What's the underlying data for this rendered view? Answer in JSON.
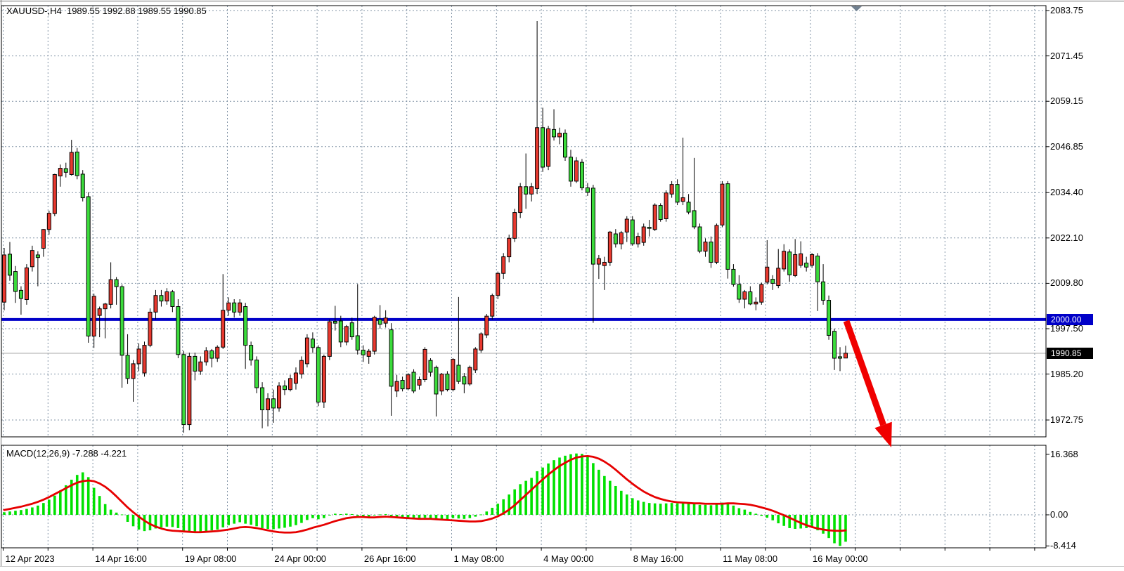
{
  "window": {
    "title": "XAUUSD-,H4  1989.55 1992.88 1989.55 1990.85",
    "symbol_period": "XAUUSD-,H4",
    "ohlc_text": "1989.55 1992.88 1989.55 1990.85"
  },
  "macd_panel": {
    "label": "MACD(12,26,9) -7.288 -4.221"
  },
  "price_tags": {
    "hline": "2000.00",
    "bid": "1990.85"
  },
  "chart_data": {
    "type": "candlestick",
    "symbol": "XAUUSD-",
    "timeframe": "H4",
    "title": "XAUUSD-,H4 1989.55 1992.88 1989.55 1990.85",
    "current_bar": {
      "open": 1989.55,
      "high": 1992.88,
      "low": 1989.55,
      "close": 1990.85
    },
    "price_axis_labels": [
      "2083.75",
      "2071.45",
      "2059.15",
      "2046.85",
      "2034.40",
      "2022.10",
      "2009.80",
      "1997.50",
      "1985.20",
      "1972.75"
    ],
    "time_axis_labels": [
      "12 Apr 2023",
      "14 Apr 16:00",
      "19 Apr 08:00",
      "24 Apr 00:00",
      "26 Apr 16:00",
      "1 May 08:00",
      "4 May 00:00",
      "8 May 16:00",
      "11 May 08:00",
      "16 May 00:00"
    ],
    "horizontal_line": {
      "price": 2000.0,
      "label": "2000.00"
    },
    "bid_line": {
      "price": 1990.85,
      "label": "1990.85"
    },
    "arrow_annotation": {
      "direction": "down",
      "from_price": 2000.0,
      "note": "red sell arrow drawn from 2000.00 line down into MACD panel"
    },
    "colors": {
      "bull": "#e8392f",
      "bear": "#3bdb3b",
      "wick": "#000000",
      "grid": "#8193a5",
      "hline": "#0000c8",
      "bid_line": "#a8a8a8",
      "macd_histogram": "#00e100",
      "macd_signal": "#e60000",
      "arrow": "#f00000",
      "axis_text": "#000000",
      "marker": "#708090"
    },
    "candles": [
      [
        2004.7,
        2019.4,
        2002.5,
        2017.5
      ],
      [
        2017.7,
        2021.0,
        2010.5,
        2012.0
      ],
      [
        2013.0,
        2014.5,
        2004.5,
        2007.6
      ],
      [
        2007.9,
        2009.0,
        2001.3,
        2005.7
      ],
      [
        2005.4,
        2015.0,
        2004.0,
        2014.0
      ],
      [
        2014.3,
        2020.0,
        2013.0,
        2018.7
      ],
      [
        2017.5,
        2018.5,
        2009.0,
        2016.8
      ],
      [
        2019.3,
        2024.5,
        2017.0,
        2024.4
      ],
      [
        2024.4,
        2029.5,
        2023.0,
        2028.8
      ],
      [
        2028.7,
        2039.5,
        2028.0,
        2039.3
      ],
      [
        2038.9,
        2042.0,
        2036.0,
        2041.0
      ],
      [
        2040.9,
        2042.5,
        2038.5,
        2039.9
      ],
      [
        2039.3,
        2048.7,
        2039.0,
        2045.3
      ],
      [
        2045.4,
        2046.5,
        2038.0,
        2039.0
      ],
      [
        2039.4,
        2040.5,
        2032.0,
        2033.0
      ],
      [
        2033.3,
        2034.5,
        1993.7,
        1995.5
      ],
      [
        1995.5,
        2007.0,
        1992.3,
        2006.3
      ],
      [
        2001.1,
        2003.5,
        1995.2,
        2002.9
      ],
      [
        2002.9,
        2004.5,
        1994.9,
        2004.2
      ],
      [
        2004.1,
        2015.5,
        2003.0,
        2010.8
      ],
      [
        2010.8,
        2011.5,
        2004.0,
        2008.9
      ],
      [
        2008.9,
        2009.5,
        1981.5,
        1990.3
      ],
      [
        1990.3,
        1996.0,
        1982.5,
        1984.0
      ],
      [
        1984.0,
        1989.0,
        1977.7,
        1988.0
      ],
      [
        1988.0,
        1993.5,
        1986.0,
        1992.0
      ],
      [
        1985.5,
        1994.0,
        1984.5,
        1993.0
      ],
      [
        1993.0,
        2003.0,
        1992.5,
        2002.0
      ],
      [
        2002.0,
        2008.0,
        2000.0,
        2006.5
      ],
      [
        2006.5,
        2008.0,
        2003.5,
        2005.0
      ],
      [
        2005.0,
        2008.5,
        2004.0,
        2007.5
      ],
      [
        2007.5,
        2008.0,
        2002.0,
        2003.5
      ],
      [
        2003.5,
        2005.5,
        1989.5,
        1990.5
      ],
      [
        1990.5,
        1991.5,
        1969.3,
        1971.5
      ],
      [
        1971.5,
        1991.0,
        1970.0,
        1990.0
      ],
      [
        1990.0,
        1991.0,
        1983.5,
        1986.0
      ],
      [
        1986.0,
        1990.0,
        1985.0,
        1988.5
      ],
      [
        1988.5,
        1992.5,
        1987.5,
        1991.5
      ],
      [
        1991.5,
        1992.0,
        1987.0,
        1989.5
      ],
      [
        1989.5,
        1993.0,
        1988.5,
        1992.5
      ],
      [
        1992.5,
        2012.3,
        1992.0,
        2002.5
      ],
      [
        2002.5,
        2006.0,
        2001.0,
        2004.5
      ],
      [
        2004.5,
        2005.5,
        2000.5,
        2002.0
      ],
      [
        2002.0,
        2005.5,
        2001.0,
        2004.5
      ],
      [
        2003.5,
        2004.5,
        1986.6,
        1993.0
      ],
      [
        1993.0,
        1994.0,
        1987.5,
        1989.0
      ],
      [
        1989.0,
        1990.0,
        1980.0,
        1981.5
      ],
      [
        1981.5,
        1983.0,
        1970.5,
        1975.5
      ],
      [
        1975.5,
        1980.0,
        1971.0,
        1978.5
      ],
      [
        1978.5,
        1981.0,
        1972.0,
        1976.0
      ],
      [
        1976.0,
        1983.0,
        1975.0,
        1982.0
      ],
      [
        1982.0,
        1983.5,
        1979.5,
        1981.0
      ],
      [
        1981.0,
        1985.0,
        1980.5,
        1984.0
      ],
      [
        1982.7,
        1987.0,
        1981.0,
        1985.5
      ],
      [
        1985.2,
        1990.0,
        1984.0,
        1988.9
      ],
      [
        1988.0,
        1996.0,
        1987.0,
        1995.0
      ],
      [
        1994.7,
        1996.5,
        1991.0,
        1992.4
      ],
      [
        1992.4,
        1993.0,
        1976.5,
        1977.6
      ],
      [
        1977.6,
        1990.5,
        1976.0,
        1990.0
      ],
      [
        1990.0,
        2000.0,
        1989.0,
        1999.4
      ],
      [
        1999.5,
        2003.7,
        1997.0,
        1999.0
      ],
      [
        1999.6,
        2001.0,
        1992.5,
        1993.9
      ],
      [
        1993.9,
        1998.5,
        1993.0,
        1998.1
      ],
      [
        1999.1,
        2000.5,
        1994.5,
        1995.3
      ],
      [
        1995.6,
        2009.6,
        1990.5,
        1991.7
      ],
      [
        1991.7,
        1993.0,
        1988.5,
        1990.4
      ],
      [
        1990.0,
        1992.0,
        1988.0,
        1991.4
      ],
      [
        1991.4,
        2001.0,
        1990.5,
        2000.6
      ],
      [
        2000.0,
        2003.9,
        1997.5,
        1998.7
      ],
      [
        1999.0,
        2002.5,
        1997.8,
        2000.4
      ],
      [
        1997.2,
        1999.0,
        1973.9,
        1981.9
      ],
      [
        1980.6,
        1985.0,
        1979.0,
        1983.2
      ],
      [
        1983.5,
        1984.5,
        1980.5,
        1981.2
      ],
      [
        1981.2,
        1985.5,
        1980.8,
        1985.0
      ],
      [
        1985.7,
        1986.5,
        1980.0,
        1980.6
      ],
      [
        1982.2,
        1984.5,
        1981.0,
        1983.7
      ],
      [
        1983.7,
        1992.5,
        1983.0,
        1991.9
      ],
      [
        1988.9,
        1989.5,
        1984.5,
        1985.7
      ],
      [
        1987.0,
        1987.5,
        1973.7,
        1979.8
      ],
      [
        1980.6,
        1985.5,
        1979.5,
        1985.2
      ],
      [
        1985.2,
        1986.0,
        1980.5,
        1981.0
      ],
      [
        1981.0,
        1989.5,
        1980.5,
        1989.2
      ],
      [
        1987.6,
        2006.1,
        1982.5,
        1983.2
      ],
      [
        1984.5,
        1985.5,
        1980.0,
        1982.5
      ],
      [
        1982.5,
        1987.5,
        1982.0,
        1987.0
      ],
      [
        1986.3,
        1992.5,
        1985.5,
        1992.0
      ],
      [
        1991.7,
        1996.5,
        1991.0,
        1996.1
      ],
      [
        1995.8,
        2001.5,
        1995.0,
        2000.9
      ],
      [
        2000.9,
        2007.0,
        2000.0,
        2006.5
      ],
      [
        2006.5,
        2013.0,
        2005.5,
        2012.5
      ],
      [
        2012.5,
        2018.0,
        2011.0,
        2017.0
      ],
      [
        2017.0,
        2023.0,
        2015.5,
        2022.0
      ],
      [
        2022.0,
        2030.0,
        2021.0,
        2029.0
      ],
      [
        2029.0,
        2037.0,
        2027.5,
        2036.0
      ],
      [
        2036.0,
        2045.0,
        2030.0,
        2034.0
      ],
      [
        2034.0,
        2037.0,
        2032.0,
        2036.0
      ],
      [
        2035.5,
        2080.9,
        2034.0,
        2052.0
      ],
      [
        2052.0,
        2057.4,
        2040.0,
        2041.3
      ],
      [
        2041.5,
        2052.5,
        2040.5,
        2051.7
      ],
      [
        2051.5,
        2057.0,
        2048.5,
        2049.5
      ],
      [
        2049.5,
        2052.0,
        2047.5,
        2050.5
      ],
      [
        2050.5,
        2051.5,
        2043.0,
        2044.0
      ],
      [
        2044.0,
        2046.0,
        2036.0,
        2037.5
      ],
      [
        2037.5,
        2044.0,
        2037.0,
        2043.0
      ],
      [
        2042.6,
        2043.5,
        2035.0,
        2035.7
      ],
      [
        2035.7,
        2037.0,
        2033.5,
        2034.5
      ],
      [
        2035.6,
        2036.5,
        1999.1,
        2015.0
      ],
      [
        2015.0,
        2017.5,
        2011.0,
        2016.5
      ],
      [
        2014.6,
        2017.0,
        2008.0,
        2015.5
      ],
      [
        2015.5,
        2024.0,
        2014.5,
        2023.7
      ],
      [
        2023.2,
        2024.5,
        2019.5,
        2020.5
      ],
      [
        2020.5,
        2024.0,
        2019.0,
        2023.5
      ],
      [
        2023.7,
        2028.0,
        2021.0,
        2027.2
      ],
      [
        2027.0,
        2028.0,
        2020.0,
        2020.5
      ],
      [
        2020.5,
        2023.5,
        2019.5,
        2022.5
      ],
      [
        2020.9,
        2026.0,
        2020.0,
        2025.1
      ],
      [
        2025.0,
        2027.0,
        2022.5,
        2024.7
      ],
      [
        2024.4,
        2031.5,
        2024.0,
        2031.0
      ],
      [
        2030.9,
        2031.5,
        2026.5,
        2027.1
      ],
      [
        2027.3,
        2035.0,
        2026.5,
        2034.3
      ],
      [
        2034.0,
        2037.5,
        2033.0,
        2036.6
      ],
      [
        2036.6,
        2038.0,
        2031.0,
        2031.8
      ],
      [
        2032.0,
        2049.3,
        2031.0,
        2033.0
      ],
      [
        2031.8,
        2034.0,
        2028.5,
        2029.1
      ],
      [
        2029.5,
        2043.8,
        2024.5,
        2025.1
      ],
      [
        2025.1,
        2026.0,
        2018.0,
        2018.5
      ],
      [
        2018.5,
        2022.0,
        2017.0,
        2021.0
      ],
      [
        2021.0,
        2022.5,
        2014.0,
        2015.5
      ],
      [
        2015.5,
        2026.0,
        2015.0,
        2025.5
      ],
      [
        2025.6,
        2037.5,
        2025.0,
        2036.7
      ],
      [
        2036.8,
        2037.5,
        2011.1,
        2013.6
      ],
      [
        2013.6,
        2015.0,
        2008.9,
        2009.5
      ],
      [
        2009.5,
        2012.0,
        2004.5,
        2005.5
      ],
      [
        2005.5,
        2008.0,
        2003.0,
        2007.5
      ],
      [
        2007.5,
        2009.0,
        2003.9,
        2004.2
      ],
      [
        2004.2,
        2006.0,
        2002.5,
        2004.7
      ],
      [
        2004.7,
        2010.0,
        2004.0,
        2009.5
      ],
      [
        2010.1,
        2021.5,
        2009.5,
        2014.2
      ],
      [
        2010.9,
        2012.0,
        2008.0,
        2009.8
      ],
      [
        2009.2,
        2019.1,
        2008.5,
        2013.9
      ],
      [
        2013.7,
        2020.4,
        2013.0,
        2018.5
      ],
      [
        2018.3,
        2019.0,
        2010.2,
        2012.1
      ],
      [
        2011.9,
        2021.8,
        2011.5,
        2017.6
      ],
      [
        2014.7,
        2021.2,
        2014.0,
        2017.8
      ],
      [
        2015.3,
        2017.0,
        2013.0,
        2014.2
      ],
      [
        2014.7,
        2018.0,
        2014.0,
        2017.6
      ],
      [
        2017.2,
        2018.0,
        2002.3,
        2010.2
      ],
      [
        2010.2,
        2015.0,
        2004.0,
        2005.2
      ],
      [
        2005.2,
        2006.5,
        1994.5,
        1995.7
      ],
      [
        1996.8,
        1997.5,
        1986.3,
        1989.5
      ],
      [
        1989.9,
        1992.5,
        1986.0,
        1989.5
      ],
      [
        1989.55,
        1992.88,
        1989.55,
        1990.85
      ]
    ],
    "macd": {
      "label": "MACD(12,26,9)",
      "params": "12,26,9",
      "value": -7.288,
      "signal": -4.221,
      "axis_labels": [
        "16.368",
        "0.00",
        "-8.414"
      ],
      "axis_values": [
        16.368,
        0.0,
        -8.414
      ],
      "histogram": [
        0.7,
        0.9,
        1.1,
        1.3,
        1.6,
        2.0,
        2.5,
        3.2,
        4.1,
        5.2,
        6.6,
        8.0,
        9.5,
        10.8,
        11.5,
        10.2,
        7.3,
        5.1,
        2.9,
        1.4,
        0.6,
        0.1,
        -1.9,
        -3.1,
        -4.0,
        -4.4,
        -4.2,
        -3.7,
        -3.4,
        -3.2,
        -3.3,
        -3.6,
        -4.4,
        -4.6,
        -4.7,
        -4.6,
        -4.4,
        -4.2,
        -4.0,
        -3.4,
        -2.8,
        -2.4,
        -2.0,
        -2.4,
        -2.7,
        -3.1,
        -3.6,
        -3.8,
        -3.9,
        -3.7,
        -3.5,
        -3.2,
        -2.8,
        -2.2,
        -1.4,
        -0.9,
        -1.2,
        -0.9,
        -0.1,
        0.3,
        0.2,
        0.3,
        0.2,
        -0.3,
        -0.6,
        -0.6,
        -0.1,
        0.1,
        0.2,
        -0.6,
        -0.8,
        -1.0,
        -1.0,
        -1.1,
        -1.1,
        -0.8,
        -0.9,
        -1.2,
        -1.1,
        -1.2,
        -0.9,
        -1.0,
        -1.1,
        -0.9,
        -0.5,
        0.1,
        0.9,
        1.9,
        3.0,
        4.2,
        5.5,
        6.9,
        8.3,
        9.2,
        10.0,
        11.8,
        12.8,
        13.9,
        14.8,
        15.5,
        16.0,
        16.4,
        16.6,
        16.5,
        16.0,
        14.0,
        12.2,
        10.5,
        9.2,
        7.8,
        6.5,
        5.5,
        4.5,
        3.9,
        3.5,
        3.2,
        3.1,
        3.0,
        3.1,
        3.2,
        3.1,
        3.2,
        3.0,
        2.9,
        2.7,
        2.7,
        2.6,
        2.9,
        3.3,
        3.0,
        2.5,
        1.8,
        1.4,
        0.8,
        0.3,
        -0.3,
        -0.8,
        -1.5,
        -2.3,
        -3.0,
        -3.6,
        -3.8,
        -3.7,
        -3.6,
        -3.4,
        -4.2,
        -5.1,
        -6.3,
        -7.7,
        -8.414,
        -7.288
      ],
      "signal_line": [
        1.3,
        1.6,
        1.9,
        2.2,
        2.6,
        3.0,
        3.5,
        4.1,
        4.8,
        5.6,
        6.4,
        7.2,
        8.0,
        8.7,
        9.1,
        9.3,
        9.1,
        8.5,
        7.6,
        6.4,
        5.0,
        3.5,
        2.0,
        0.7,
        -0.5,
        -1.6,
        -2.5,
        -3.2,
        -3.7,
        -4.1,
        -4.3,
        -4.4,
        -4.5,
        -4.6,
        -4.7,
        -4.7,
        -4.6,
        -4.5,
        -4.4,
        -4.2,
        -4.0,
        -3.7,
        -3.4,
        -3.3,
        -3.4,
        -3.6,
        -3.9,
        -4.2,
        -4.5,
        -4.7,
        -4.8,
        -4.8,
        -4.7,
        -4.4,
        -4.0,
        -3.5,
        -3.1,
        -2.7,
        -2.2,
        -1.7,
        -1.3,
        -0.9,
        -0.7,
        -0.6,
        -0.6,
        -0.7,
        -0.7,
        -0.6,
        -0.5,
        -0.6,
        -0.7,
        -0.8,
        -0.9,
        -1.0,
        -1.1,
        -1.1,
        -1.1,
        -1.2,
        -1.3,
        -1.4,
        -1.5,
        -1.6,
        -1.7,
        -1.8,
        -1.8,
        -1.7,
        -1.4,
        -1.0,
        -0.4,
        0.4,
        1.4,
        2.6,
        4.0,
        5.4,
        6.8,
        8.2,
        9.6,
        10.9,
        12.1,
        13.2,
        14.1,
        14.9,
        15.5,
        15.8,
        15.9,
        15.7,
        15.2,
        14.4,
        13.4,
        12.2,
        10.9,
        9.6,
        8.4,
        7.3,
        6.3,
        5.5,
        4.8,
        4.3,
        3.9,
        3.6,
        3.4,
        3.3,
        3.2,
        3.1,
        3.1,
        3.0,
        3.0,
        3.0,
        3.0,
        3.1,
        3.1,
        3.0,
        2.9,
        2.7,
        2.4,
        2.0,
        1.6,
        1.1,
        0.5,
        -0.1,
        -0.8,
        -1.5,
        -2.2,
        -2.8,
        -3.3,
        -3.7,
        -4.0,
        -4.2,
        -4.3,
        -4.35,
        -4.221
      ]
    }
  }
}
